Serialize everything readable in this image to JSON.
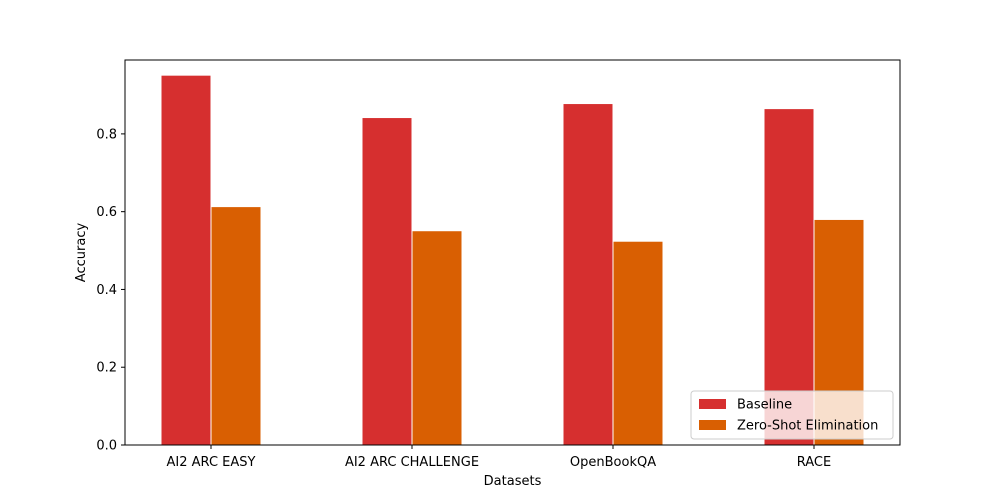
{
  "chart_data": {
    "type": "bar",
    "title": "",
    "xlabel": "Datasets",
    "ylabel": "Accuracy",
    "categories": [
      "AI2 ARC EASY",
      "AI2 ARC CHALLENGE",
      "OpenBookQA",
      "RACE"
    ],
    "series": [
      {
        "name": "Baseline",
        "color": "#d62f2f",
        "values": [
          0.951,
          0.842,
          0.878,
          0.865
        ]
      },
      {
        "name": "Zero-Shot Elimination",
        "color": "#d95f02",
        "values": [
          0.613,
          0.551,
          0.524,
          0.58
        ]
      }
    ],
    "ylim": [
      0,
      0.99
    ],
    "yticks": [
      0.0,
      0.2,
      0.4,
      0.6,
      0.8
    ],
    "ytick_labels": [
      "0.0",
      "0.2",
      "0.4",
      "0.6",
      "0.8"
    ],
    "grid": false,
    "legend_position": "bottom-right"
  }
}
